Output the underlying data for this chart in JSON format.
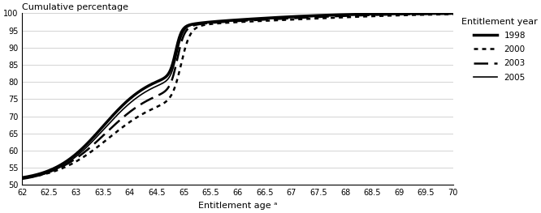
{
  "title": "Cumulative percentage",
  "xlabel": "Entitlement age ᵃ",
  "ylabel": "",
  "xlim": [
    62,
    70
  ],
  "ylim": [
    50,
    100
  ],
  "xticks": [
    62,
    62.5,
    63,
    63.5,
    64,
    64.5,
    65,
    65.5,
    66,
    66.5,
    67,
    67.5,
    68,
    68.5,
    69,
    69.5,
    70
  ],
  "xtick_labels": [
    "62",
    "62.5",
    "63",
    "63.5",
    "64",
    "64.5",
    "65",
    "65.5",
    "66",
    "66.5",
    "67",
    "67.5",
    "68",
    "68.5",
    "69",
    "69.5",
    "70"
  ],
  "yticks": [
    50,
    55,
    60,
    65,
    70,
    75,
    80,
    85,
    90,
    95,
    100
  ],
  "legend_title": "Entitlement year",
  "series": [
    {
      "label": "1998",
      "linestyle": "solid",
      "linewidth": 2.5,
      "color": "#000000"
    },
    {
      "label": "2000",
      "linestyle": "dotted",
      "linewidth": 1.8,
      "color": "#000000"
    },
    {
      "label": "2003",
      "linestyle": "dashed",
      "linewidth": 1.8,
      "color": "#000000"
    },
    {
      "label": "2005",
      "linestyle": "solid",
      "linewidth": 1.2,
      "color": "#000000"
    }
  ],
  "background_color": "#ffffff",
  "grid_color": "#cccccc"
}
